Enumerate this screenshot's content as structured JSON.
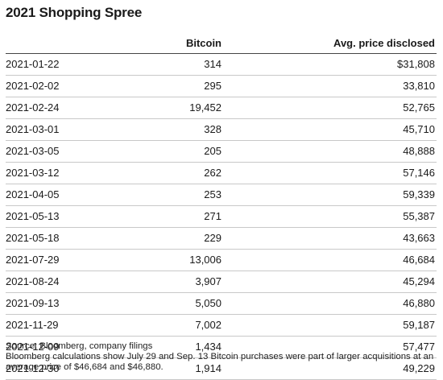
{
  "title": "2021 Shopping Spree",
  "chart_data": {
    "type": "table",
    "columns": [
      "",
      "Bitcoin",
      "Avg. price disclosed"
    ],
    "rows": [
      {
        "date": "2021-01-22",
        "bitcoin": "314",
        "price": "$31,808"
      },
      {
        "date": "2021-02-02",
        "bitcoin": "295",
        "price": "33,810"
      },
      {
        "date": "2021-02-24",
        "bitcoin": "19,452",
        "price": "52,765"
      },
      {
        "date": "2021-03-01",
        "bitcoin": "328",
        "price": "45,710"
      },
      {
        "date": "2021-03-05",
        "bitcoin": "205",
        "price": "48,888"
      },
      {
        "date": "2021-03-12",
        "bitcoin": "262",
        "price": "57,146"
      },
      {
        "date": "2021-04-05",
        "bitcoin": "253",
        "price": "59,339"
      },
      {
        "date": "2021-05-13",
        "bitcoin": "271",
        "price": "55,387"
      },
      {
        "date": "2021-05-18",
        "bitcoin": "229",
        "price": "43,663"
      },
      {
        "date": "2021-07-29",
        "bitcoin": "13,006",
        "price": "46,684"
      },
      {
        "date": "2021-08-24",
        "bitcoin": "3,907",
        "price": "45,294"
      },
      {
        "date": "2021-09-13",
        "bitcoin": "5,050",
        "price": "46,880"
      },
      {
        "date": "2021-11-29",
        "bitcoin": "7,002",
        "price": "59,187"
      },
      {
        "date": "2021-12-09",
        "bitcoin": "1,434",
        "price": "57,477"
      },
      {
        "date": "2021-12-30",
        "bitcoin": "1,914",
        "price": "49,229"
      }
    ]
  },
  "source": "Source: Bloomberg, company filings",
  "note": "Bloomberg calculations show July 29 and Sep. 13 Bitcoin purchases were part of larger acquisitions at an average price of $46,684 and $46,880."
}
